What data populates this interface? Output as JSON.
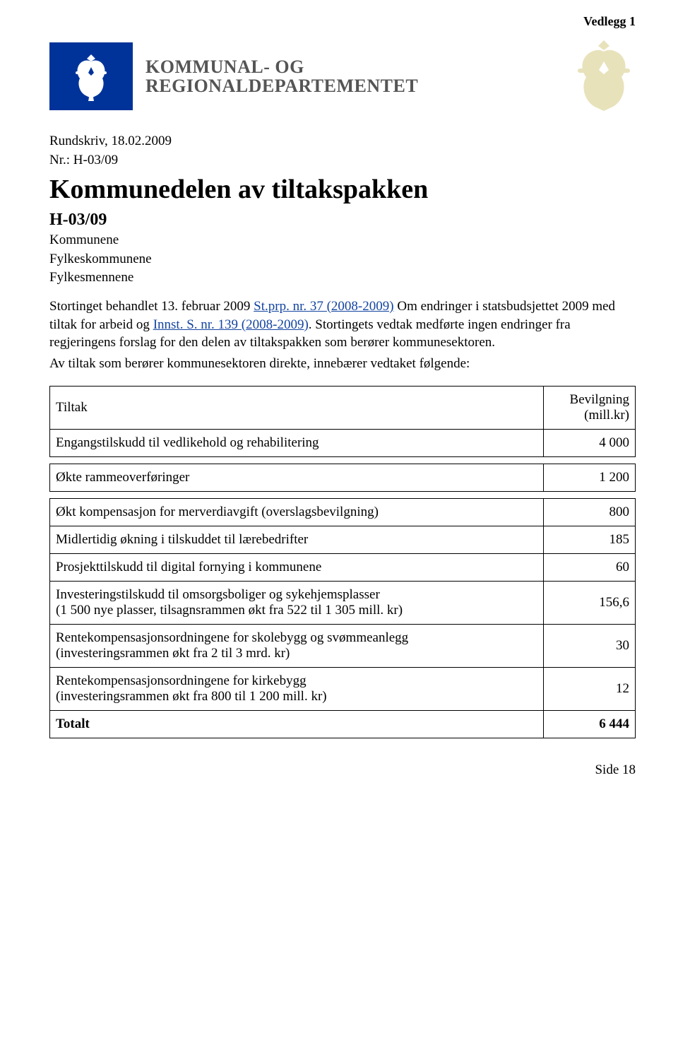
{
  "colors": {
    "logo_bg": "#003399",
    "link": "#1344a0",
    "text": "#000000",
    "dept_text": "#555555",
    "watermark": "#d9cf8f",
    "bg": "#ffffff",
    "lion_fill": "#ffffff"
  },
  "header": {
    "vedlegg": "Vedlegg 1",
    "dept_line1": "KOMMUNAL- OG",
    "dept_line2": "REGIONALDEPARTEMENTET"
  },
  "meta": {
    "rundskriv": "Rundskriv, 18.02.2009",
    "nr": "Nr.: H-03/09",
    "title": "Kommunedelen av tiltakspakken",
    "subcode": "H-03/09",
    "recipients": [
      "Kommunene",
      "Fylkeskommunene",
      "Fylkesmennene"
    ]
  },
  "body": {
    "line1a": "Stortinget behandlet 13. februar 2009 ",
    "link1": "St.prp. nr. 37 (2008-2009)",
    "line1b": " Om endringer i statsbudsjettet 2009 med tiltak for arbeid og ",
    "link2": "Innst. S. nr. 139 (2008-2009)",
    "line1c": ". Stortingets vedtak medførte ingen endringer fra regjeringens forslag for den delen av tiltakspakken som berører kommunesektoren.",
    "line2": "Av tiltak som berører kommunesektoren direkte, innebærer vedtaket følgende:"
  },
  "table": {
    "col_tiltak": "Tiltak",
    "col_bevilgning_l1": "Bevilgning",
    "col_bevilgning_l2": "(mill.kr)",
    "rows": [
      {
        "label": "Engangstilskudd til vedlikehold og rehabilitering",
        "value": "4 000"
      },
      {
        "label": "Økte rammeoverføringer",
        "value": "1 200"
      },
      {
        "label": "Økt kompensasjon for merverdiavgift (overslagsbevilgning)",
        "value": "800"
      },
      {
        "label": "Midlertidig økning i tilskuddet til lærebedrifter",
        "value": "185"
      },
      {
        "label": "Prosjekttilskudd til digital fornying i kommunene",
        "value": "60"
      },
      {
        "label": "Investeringstilskudd til omsorgsboliger og sykehjemsplasser\n(1 500 nye plasser, tilsagnsrammen økt fra 522 til 1 305 mill. kr)",
        "value": "156,6"
      },
      {
        "label": "Rentekompensasjonsordningene for skolebygg og svømmeanlegg\n(investeringsrammen økt fra 2 til 3 mrd. kr)",
        "value": "30"
      },
      {
        "label": "Rentekompensasjonsordningene for kirkebygg\n(investeringsrammen økt fra 800 til 1 200 mill. kr)",
        "value": "12"
      }
    ],
    "total_label": "Totalt",
    "total_value": "6 444"
  },
  "footer": {
    "page": "Side 18"
  }
}
